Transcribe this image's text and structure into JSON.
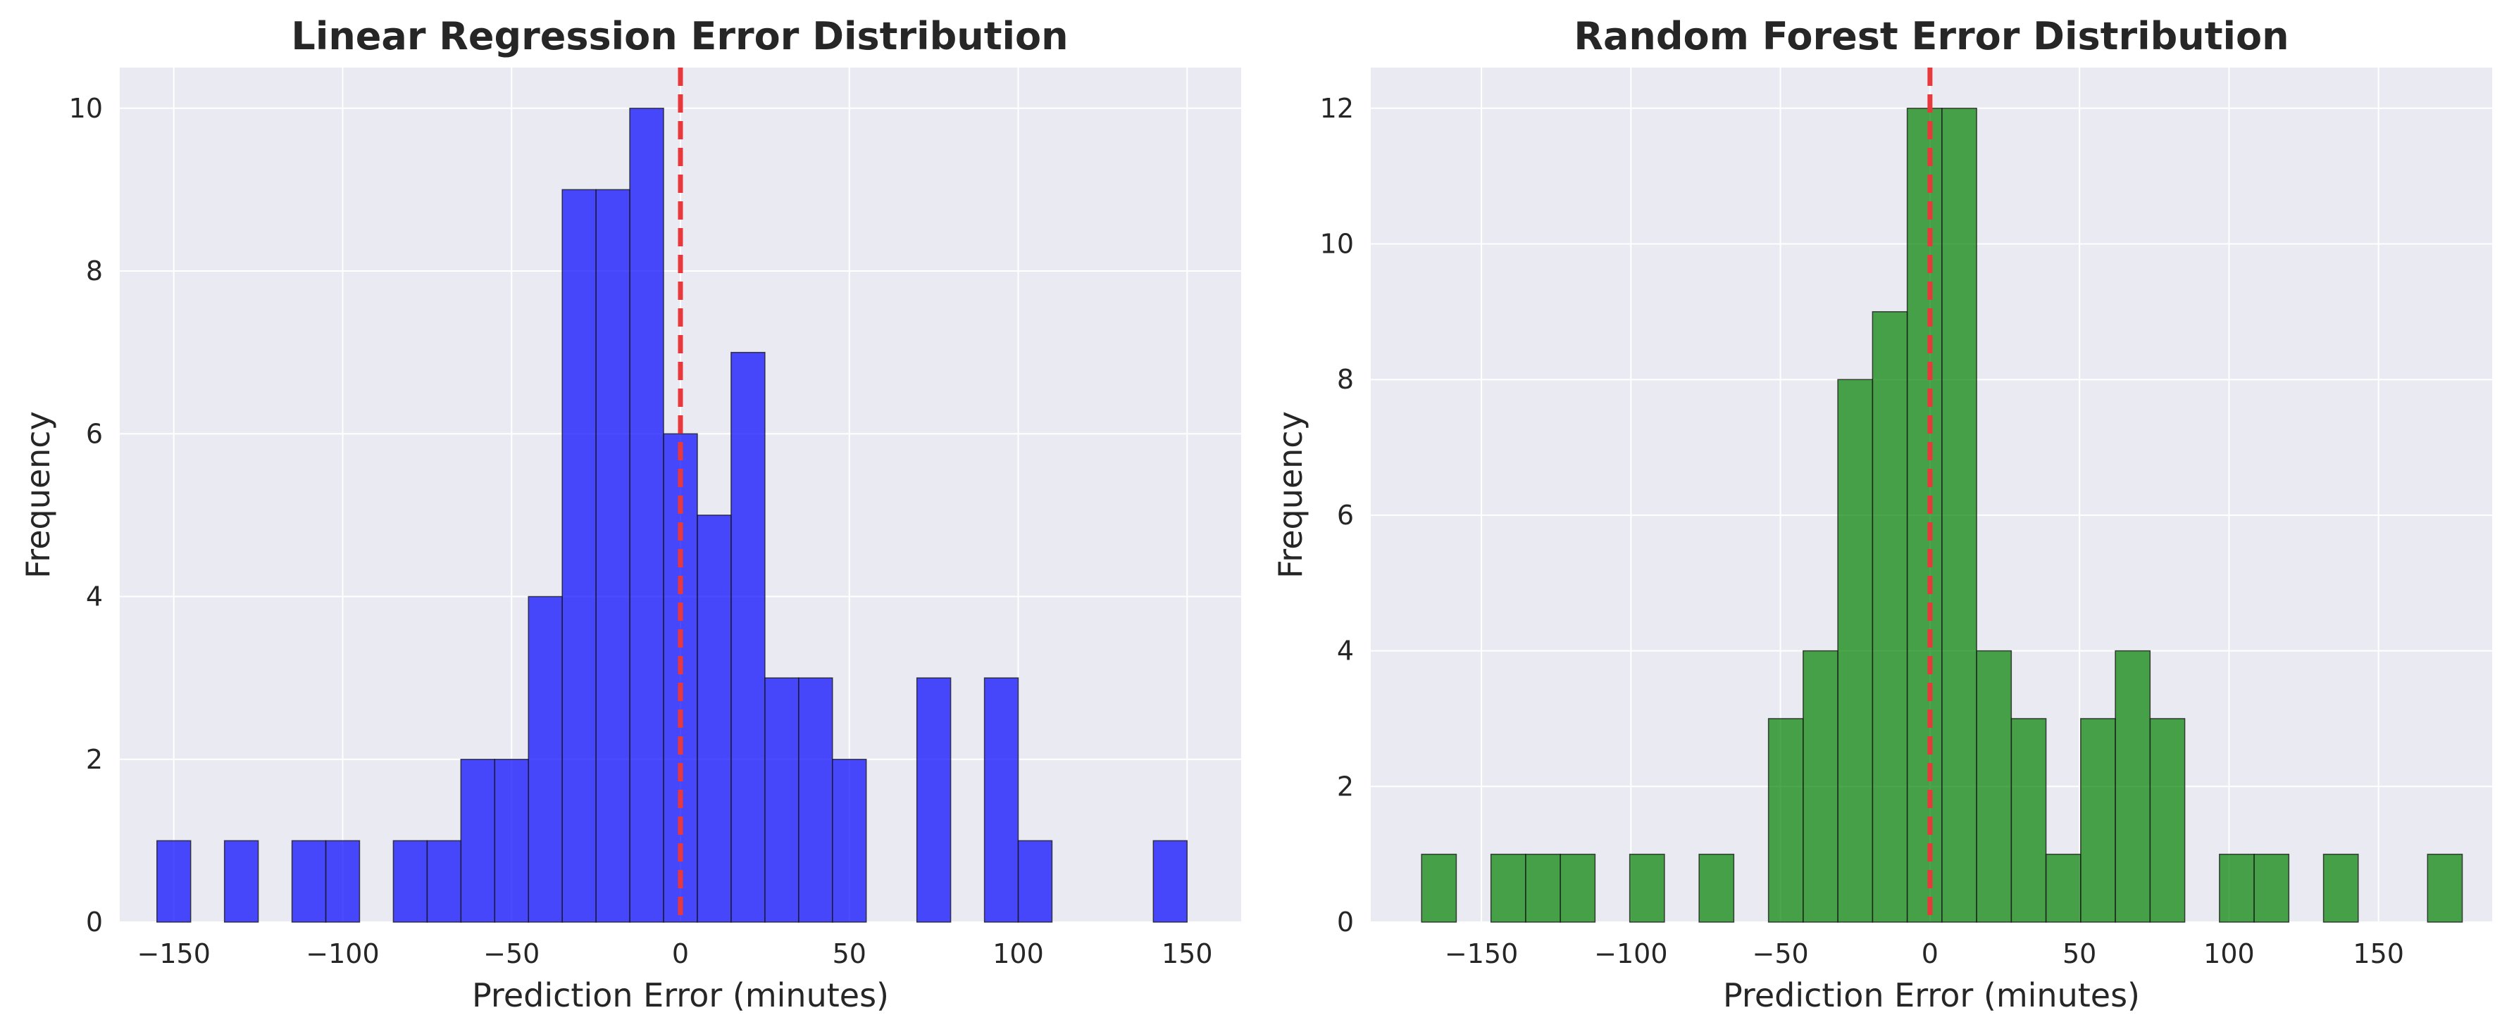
{
  "chart_data": [
    {
      "type": "bar",
      "title": "Linear Regression Error Distribution",
      "xlabel": "Prediction Error (minutes)",
      "ylabel": "Frequency",
      "bar_color": "#0000ff",
      "bar_opacity": 0.7,
      "edge_color": "#1a1a1a",
      "reference_line": {
        "x": 0,
        "color": "#e8383b",
        "style": "dashed"
      },
      "bin_width": 10,
      "x_range": [
        -166,
        166
      ],
      "ylim": [
        0,
        10.5
      ],
      "xticks": [
        -150,
        -100,
        -50,
        0,
        50,
        100,
        150
      ],
      "xtick_labels": [
        "−150",
        "−100",
        "−50",
        "0",
        "50",
        "100",
        "150"
      ],
      "yticks": [
        0,
        2,
        4,
        6,
        8,
        10
      ],
      "ytick_labels": [
        "0",
        "2",
        "4",
        "6",
        "8",
        "10"
      ],
      "grid": true,
      "bins": [
        {
          "start": -155,
          "end": -145,
          "count": 1
        },
        {
          "start": -135,
          "end": -125,
          "count": 1
        },
        {
          "start": -115,
          "end": -105,
          "count": 1
        },
        {
          "start": -105,
          "end": -95,
          "count": 1
        },
        {
          "start": -85,
          "end": -75,
          "count": 1
        },
        {
          "start": -75,
          "end": -65,
          "count": 1
        },
        {
          "start": -65,
          "end": -55,
          "count": 2
        },
        {
          "start": -55,
          "end": -45,
          "count": 2
        },
        {
          "start": -45,
          "end": -35,
          "count": 4
        },
        {
          "start": -35,
          "end": -25,
          "count": 9
        },
        {
          "start": -25,
          "end": -15,
          "count": 9
        },
        {
          "start": -15,
          "end": -5,
          "count": 10
        },
        {
          "start": -5,
          "end": 5,
          "count": 6
        },
        {
          "start": 5,
          "end": 15,
          "count": 5
        },
        {
          "start": 15,
          "end": 25,
          "count": 7
        },
        {
          "start": 25,
          "end": 35,
          "count": 3
        },
        {
          "start": 35,
          "end": 45,
          "count": 3
        },
        {
          "start": 45,
          "end": 55,
          "count": 2
        },
        {
          "start": 70,
          "end": 80,
          "count": 3
        },
        {
          "start": 90,
          "end": 100,
          "count": 3
        },
        {
          "start": 100,
          "end": 110,
          "count": 1
        },
        {
          "start": 140,
          "end": 150,
          "count": 1
        }
      ]
    },
    {
      "type": "bar",
      "title": "Random Forest Error Distribution",
      "xlabel": "Prediction Error (minutes)",
      "ylabel": "Frequency",
      "bar_color": "#008000",
      "bar_opacity": 0.7,
      "edge_color": "#1a1a1a",
      "reference_line": {
        "x": 0,
        "color": "#e8383b",
        "style": "dashed"
      },
      "bin_width": 11.6,
      "x_range": [
        -187,
        188
      ],
      "ylim": [
        0,
        12.6
      ],
      "xticks": [
        -150,
        -100,
        -50,
        0,
        50,
        100,
        150
      ],
      "xtick_labels": [
        "−150",
        "−100",
        "−50",
        "0",
        "50",
        "100",
        "150"
      ],
      "yticks": [
        0,
        2,
        4,
        6,
        8,
        10,
        12
      ],
      "ytick_labels": [
        "0",
        "2",
        "4",
        "6",
        "8",
        "10",
        "12"
      ],
      "grid": true,
      "bins": [
        {
          "start": -170,
          "end": -158.4,
          "count": 1
        },
        {
          "start": -146.8,
          "end": -135.2,
          "count": 1
        },
        {
          "start": -135.2,
          "end": -123.6,
          "count": 1
        },
        {
          "start": -123.6,
          "end": -112,
          "count": 1
        },
        {
          "start": -100.4,
          "end": -88.8,
          "count": 1
        },
        {
          "start": -77.2,
          "end": -65.6,
          "count": 1
        },
        {
          "start": -54,
          "end": -42.4,
          "count": 3
        },
        {
          "start": -42.4,
          "end": -30.8,
          "count": 4
        },
        {
          "start": -30.8,
          "end": -19.2,
          "count": 8
        },
        {
          "start": -19.2,
          "end": -7.6,
          "count": 9
        },
        {
          "start": -7.6,
          "end": 4,
          "count": 12
        },
        {
          "start": 4,
          "end": 15.6,
          "count": 12
        },
        {
          "start": 15.6,
          "end": 27.2,
          "count": 4
        },
        {
          "start": 27.2,
          "end": 38.8,
          "count": 3
        },
        {
          "start": 38.8,
          "end": 50.4,
          "count": 1
        },
        {
          "start": 50.4,
          "end": 62,
          "count": 3
        },
        {
          "start": 62,
          "end": 73.6,
          "count": 4
        },
        {
          "start": 73.6,
          "end": 85.2,
          "count": 3
        },
        {
          "start": 96.8,
          "end": 108.4,
          "count": 1
        },
        {
          "start": 108.4,
          "end": 120,
          "count": 1
        },
        {
          "start": 131.6,
          "end": 143.2,
          "count": 1
        },
        {
          "start": 166.4,
          "end": 178,
          "count": 1
        }
      ]
    }
  ]
}
